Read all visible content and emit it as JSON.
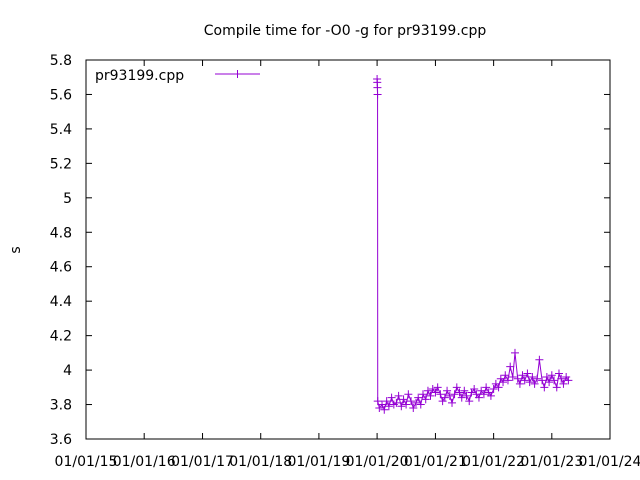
{
  "chart_data": {
    "type": "scatter",
    "title": "Compile time for -O0 -g for pr93199.cpp",
    "xlabel": "",
    "ylabel": "s",
    "ylim": [
      3.6,
      5.8
    ],
    "yticks": [
      "3.6",
      "3.8",
      "4",
      "4.2",
      "4.4",
      "4.6",
      "4.8",
      "5",
      "5.2",
      "5.4",
      "5.6",
      "5.8"
    ],
    "xlim": [
      "2015-01-01",
      "2024-01-01"
    ],
    "xticks": [
      "01/01/15",
      "01/01/16",
      "01/01/17",
      "01/01/18",
      "01/01/19",
      "01/01/20",
      "01/01/21",
      "01/01/22",
      "01/01/23",
      "01/01/24"
    ],
    "grid": false,
    "legend_position": "top-left",
    "series": [
      {
        "name": "pr93199.cpp",
        "color": "#9400d3",
        "style": "linespoints",
        "marker": "plus",
        "points": [
          [
            "2020-01-01",
            5.69
          ],
          [
            "2020-01-02",
            5.67
          ],
          [
            "2020-01-03",
            5.64
          ],
          [
            "2020-01-04",
            5.6
          ],
          [
            "2020-01-05",
            3.82
          ],
          [
            "2020-01-15",
            3.78
          ],
          [
            "2020-02-01",
            3.8
          ],
          [
            "2020-02-15",
            3.77
          ],
          [
            "2020-03-01",
            3.82
          ],
          [
            "2020-03-15",
            3.79
          ],
          [
            "2020-04-01",
            3.84
          ],
          [
            "2020-04-15",
            3.8
          ],
          [
            "2020-05-01",
            3.81
          ],
          [
            "2020-05-15",
            3.85
          ],
          [
            "2020-06-01",
            3.79
          ],
          [
            "2020-06-15",
            3.83
          ],
          [
            "2020-07-01",
            3.8
          ],
          [
            "2020-07-15",
            3.86
          ],
          [
            "2020-08-01",
            3.82
          ],
          [
            "2020-08-15",
            3.78
          ],
          [
            "2020-09-01",
            3.81
          ],
          [
            "2020-09-15",
            3.84
          ],
          [
            "2020-10-01",
            3.8
          ],
          [
            "2020-10-15",
            3.86
          ],
          [
            "2020-11-01",
            3.83
          ],
          [
            "2020-11-15",
            3.88
          ],
          [
            "2020-12-01",
            3.85
          ],
          [
            "2020-12-15",
            3.89
          ],
          [
            "2021-01-01",
            3.87
          ],
          [
            "2021-01-15",
            3.9
          ],
          [
            "2021-02-01",
            3.86
          ],
          [
            "2021-02-15",
            3.82
          ],
          [
            "2021-03-01",
            3.84
          ],
          [
            "2021-03-15",
            3.88
          ],
          [
            "2021-04-01",
            3.85
          ],
          [
            "2021-04-15",
            3.81
          ],
          [
            "2021-05-01",
            3.86
          ],
          [
            "2021-05-15",
            3.9
          ],
          [
            "2021-06-01",
            3.87
          ],
          [
            "2021-06-15",
            3.84
          ],
          [
            "2021-07-01",
            3.88
          ],
          [
            "2021-07-15",
            3.85
          ],
          [
            "2021-08-01",
            3.82
          ],
          [
            "2021-08-15",
            3.87
          ],
          [
            "2021-09-01",
            3.89
          ],
          [
            "2021-09-15",
            3.86
          ],
          [
            "2021-10-01",
            3.84
          ],
          [
            "2021-10-15",
            3.88
          ],
          [
            "2021-11-01",
            3.86
          ],
          [
            "2021-11-15",
            3.9
          ],
          [
            "2021-12-01",
            3.87
          ],
          [
            "2021-12-15",
            3.85
          ],
          [
            "2022-01-01",
            3.89
          ],
          [
            "2022-01-15",
            3.92
          ],
          [
            "2022-02-01",
            3.9
          ],
          [
            "2022-02-15",
            3.95
          ],
          [
            "2022-03-01",
            3.93
          ],
          [
            "2022-03-15",
            3.97
          ],
          [
            "2022-04-01",
            3.94
          ],
          [
            "2022-04-15",
            4.02
          ],
          [
            "2022-05-01",
            3.96
          ],
          [
            "2022-05-15",
            4.1
          ],
          [
            "2022-06-01",
            3.95
          ],
          [
            "2022-06-15",
            3.92
          ],
          [
            "2022-07-01",
            3.97
          ],
          [
            "2022-07-15",
            3.94
          ],
          [
            "2022-08-01",
            3.98
          ],
          [
            "2022-08-15",
            3.93
          ],
          [
            "2022-09-01",
            3.96
          ],
          [
            "2022-09-15",
            3.92
          ],
          [
            "2022-10-01",
            3.95
          ],
          [
            "2022-10-15",
            4.06
          ],
          [
            "2022-11-01",
            3.94
          ],
          [
            "2022-11-15",
            3.9
          ],
          [
            "2022-12-01",
            3.96
          ],
          [
            "2022-12-15",
            3.93
          ],
          [
            "2023-01-01",
            3.97
          ],
          [
            "2023-01-15",
            3.94
          ],
          [
            "2023-02-01",
            3.9
          ],
          [
            "2023-02-15",
            3.98
          ],
          [
            "2023-03-01",
            3.95
          ],
          [
            "2023-03-15",
            3.92
          ],
          [
            "2023-04-01",
            3.96
          ],
          [
            "2023-04-15",
            3.94
          ]
        ]
      }
    ]
  }
}
